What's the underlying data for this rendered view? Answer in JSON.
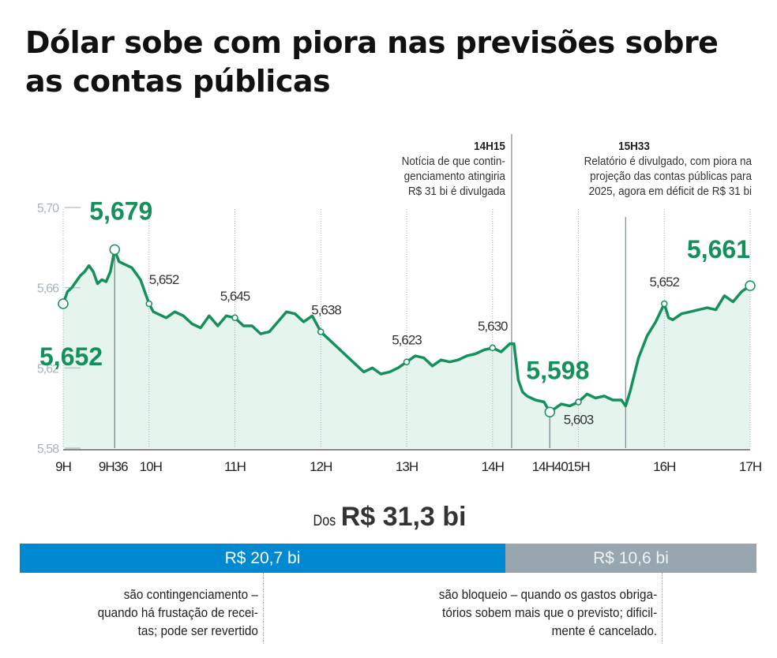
{
  "title": "Dólar sobe com piora nas previsões sobre as contas públicas",
  "annotations": [
    {
      "time": "14H15",
      "text": [
        "Notícia de que contin-",
        "genciamento atingiria",
        "R$ 31 bi é divulgada"
      ]
    },
    {
      "time": "15H33",
      "text": [
        "Relatório é divulgado, com piora na",
        "projeção das contas públicas para",
        "2025, agora em déficit de R$ 31 bi"
      ]
    }
  ],
  "chart_data": {
    "type": "area",
    "title": "Dólar sobe com piora nas previsões sobre as contas públicas",
    "xlabel": "",
    "ylabel": "",
    "ylim": [
      5.58,
      5.7
    ],
    "xlim": [
      9,
      17
    ],
    "yticks": [
      {
        "v": 5.7,
        "label": "5,70"
      },
      {
        "v": 5.66,
        "label": "5,66"
      },
      {
        "v": 5.62,
        "label": "5,62"
      },
      {
        "v": 5.58,
        "label": "5,58"
      }
    ],
    "xticks": [
      {
        "h": 9,
        "label": "9H"
      },
      {
        "h": 9.6,
        "label": "9H36"
      },
      {
        "h": 10,
        "label": "10H"
      },
      {
        "h": 11,
        "label": "11H"
      },
      {
        "h": 12,
        "label": "12H"
      },
      {
        "h": 13,
        "label": "13H"
      },
      {
        "h": 14,
        "label": "14H"
      },
      {
        "h": 14.667,
        "label": "14H40"
      },
      {
        "h": 15,
        "label": "15H"
      },
      {
        "h": 16,
        "label": "16H"
      },
      {
        "h": 17,
        "label": "17H"
      }
    ],
    "event_lines": [
      {
        "h": 14.25,
        "label": "14H15"
      },
      {
        "h": 15.55,
        "label": "15H33"
      }
    ],
    "series": [
      {
        "name": "Dólar",
        "color": "#14915a",
        "x": [
          9,
          9.05,
          9.1,
          9.15,
          9.2,
          9.25,
          9.3,
          9.35,
          9.4,
          9.45,
          9.5,
          9.55,
          9.6,
          9.65,
          9.7,
          9.8,
          9.9,
          10,
          10.05,
          10.1,
          10.2,
          10.3,
          10.4,
          10.5,
          10.6,
          10.7,
          10.8,
          10.9,
          11,
          11.1,
          11.2,
          11.3,
          11.4,
          11.5,
          11.6,
          11.7,
          11.8,
          11.9,
          12,
          12.1,
          12.2,
          12.3,
          12.4,
          12.5,
          12.6,
          12.7,
          12.8,
          12.9,
          13,
          13.1,
          13.2,
          13.3,
          13.4,
          13.5,
          13.6,
          13.7,
          13.8,
          13.9,
          14,
          14.1,
          14.2,
          14.25,
          14.3,
          14.35,
          14.4,
          14.5,
          14.6,
          14.667,
          14.8,
          14.9,
          15,
          15.1,
          15.2,
          15.3,
          15.4,
          15.5,
          15.55,
          15.6,
          15.7,
          15.8,
          15.9,
          16,
          16.05,
          16.1,
          16.2,
          16.3,
          16.4,
          16.5,
          16.6,
          16.7,
          16.8,
          16.9,
          17
        ],
        "y": [
          5.652,
          5.658,
          5.66,
          5.663,
          5.666,
          5.668,
          5.671,
          5.668,
          5.662,
          5.664,
          5.663,
          5.668,
          5.679,
          5.673,
          5.672,
          5.67,
          5.664,
          5.652,
          5.648,
          5.647,
          5.645,
          5.648,
          5.646,
          5.642,
          5.64,
          5.646,
          5.641,
          5.646,
          5.645,
          5.641,
          5.641,
          5.637,
          5.638,
          5.643,
          5.648,
          5.647,
          5.643,
          5.646,
          5.638,
          5.634,
          5.63,
          5.626,
          5.622,
          5.618,
          5.62,
          5.617,
          5.618,
          5.62,
          5.623,
          5.626,
          5.625,
          5.621,
          5.624,
          5.623,
          5.624,
          5.626,
          5.627,
          5.629,
          5.63,
          5.628,
          5.632,
          5.632,
          5.614,
          5.608,
          5.606,
          5.604,
          5.603,
          5.598,
          5.602,
          5.601,
          5.603,
          5.607,
          5.605,
          5.606,
          5.604,
          5.604,
          5.601,
          5.608,
          5.625,
          5.636,
          5.643,
          5.652,
          5.645,
          5.644,
          5.647,
          5.648,
          5.649,
          5.65,
          5.649,
          5.656,
          5.653,
          5.658,
          5.661
        ]
      }
    ],
    "point_labels": [
      {
        "h": 9,
        "v": 5.652,
        "label": "5,652",
        "big": true
      },
      {
        "h": 9.6,
        "v": 5.679,
        "label": "5,679",
        "big": true
      },
      {
        "h": 10,
        "v": 5.652,
        "label": "5,652",
        "big": false
      },
      {
        "h": 11,
        "v": 5.645,
        "label": "5,645",
        "big": false
      },
      {
        "h": 12,
        "v": 5.638,
        "label": "5,638",
        "big": false
      },
      {
        "h": 13,
        "v": 5.623,
        "label": "5,623",
        "big": false
      },
      {
        "h": 14,
        "v": 5.63,
        "label": "5,630",
        "big": false
      },
      {
        "h": 14.667,
        "v": 5.598,
        "label": "5,598",
        "big": true
      },
      {
        "h": 15,
        "v": 5.603,
        "label": "5,603",
        "big": false
      },
      {
        "h": 16,
        "v": 5.652,
        "label": "5,652",
        "big": false
      },
      {
        "h": 17,
        "v": 5.661,
        "label": "5,661",
        "big": true
      }
    ]
  },
  "breakdown": {
    "prefix": "Dos",
    "total": "R$ 31,3 bi",
    "parts": [
      {
        "label": "R$ 20,7 bi",
        "value": 20.7,
        "color": "#0088d1",
        "text": [
          "são contingenciamento –",
          "quando há frustação de recei-",
          "tas; pode ser revertido"
        ]
      },
      {
        "label": "R$ 10,6 bi",
        "value": 10.6,
        "color": "#98a6b0",
        "text": [
          "são bloqueio – quando os gastos obriga-",
          "tórios sobem mais que o previsto; dificil-",
          "mente é cancelado."
        ]
      }
    ]
  }
}
